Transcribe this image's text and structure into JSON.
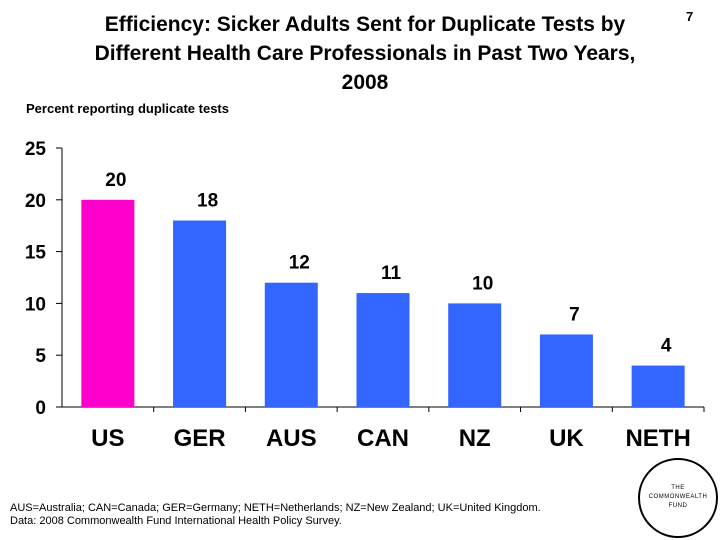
{
  "slide_number": "7",
  "title_lines": [
    "Efficiency: Sicker Adults Sent for Duplicate Tests by",
    "Different Health Care Professionals in Past Two Years,",
    "2008"
  ],
  "footnote": {
    "line1": "AUS=Australia; CAN=Canada; GER=Germany; NETH=Netherlands; NZ=New Zealand; UK=United Kingdom.",
    "line2": "Data: 2008 Commonwealth Fund International Health Policy Survey."
  },
  "logo": {
    "line1": "THE",
    "line2": "COMMONWEALTH",
    "line3": "FUND"
  },
  "colors": {
    "highlight": "#ff00cc",
    "bar": "#3366ff",
    "axis": "#000000"
  },
  "chart_data": {
    "type": "bar",
    "title": "Efficiency: Sicker Adults Sent for Duplicate Tests by Different Health Care Professionals in Past Two Years, 2008",
    "ylabel": "Percent reporting duplicate tests",
    "xlabel": "",
    "categories": [
      "US",
      "GER",
      "AUS",
      "CAN",
      "NZ",
      "UK",
      "NETH"
    ],
    "values": [
      20,
      18,
      12,
      11,
      10,
      7,
      4
    ],
    "highlight_category": "US",
    "ylim": [
      0,
      25
    ],
    "yticks": [
      0,
      5,
      10,
      15,
      20,
      25
    ],
    "grid": false,
    "legend": "none"
  }
}
